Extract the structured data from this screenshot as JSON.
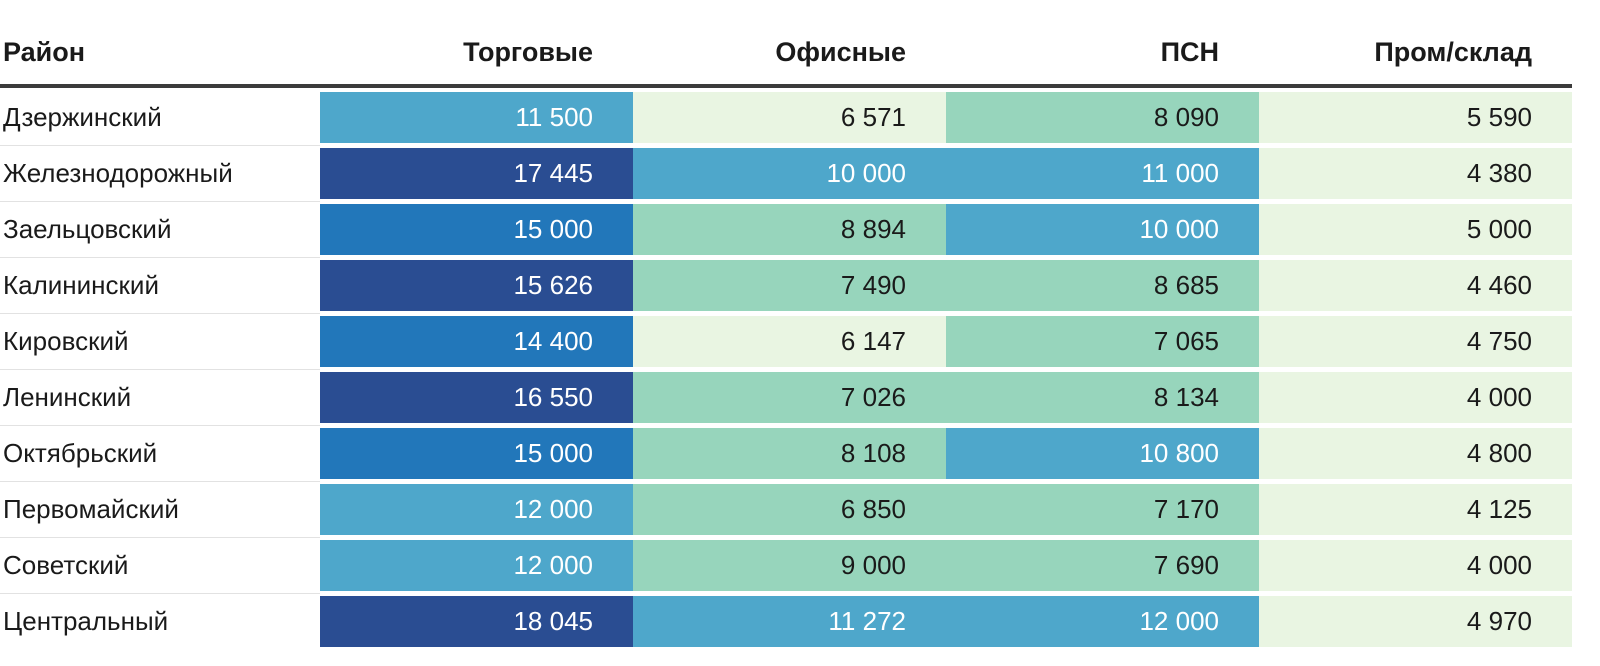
{
  "table": {
    "columns": [
      {
        "key": "district",
        "label": "Район"
      },
      {
        "key": "retail",
        "label": "Торговые"
      },
      {
        "key": "office",
        "label": "Офисные"
      },
      {
        "key": "psn",
        "label": "ПСН"
      },
      {
        "key": "industrial",
        "label": "Пром/склад"
      }
    ],
    "rows": [
      {
        "district": "Дзержинский",
        "cells": [
          {
            "display": "11 500",
            "value": 11500,
            "bin": 3
          },
          {
            "display": "6 571",
            "value": 6571,
            "bin": 1
          },
          {
            "display": "8 090",
            "value": 8090,
            "bin": 2
          },
          {
            "display": "5 590",
            "value": 5590,
            "bin": 1
          }
        ]
      },
      {
        "district": "Железнодорожный",
        "cells": [
          {
            "display": "17 445",
            "value": 17445,
            "bin": 5
          },
          {
            "display": "10 000",
            "value": 10000,
            "bin": 3
          },
          {
            "display": "11 000",
            "value": 11000,
            "bin": 3
          },
          {
            "display": "4 380",
            "value": 4380,
            "bin": 1
          }
        ]
      },
      {
        "district": "Заельцовский",
        "cells": [
          {
            "display": "15 000",
            "value": 15000,
            "bin": 4
          },
          {
            "display": "8 894",
            "value": 8894,
            "bin": 2
          },
          {
            "display": "10 000",
            "value": 10000,
            "bin": 3
          },
          {
            "display": "5 000",
            "value": 5000,
            "bin": 1
          }
        ]
      },
      {
        "district": "Калининский",
        "cells": [
          {
            "display": "15 626",
            "value": 15626,
            "bin": 5
          },
          {
            "display": "7 490",
            "value": 7490,
            "bin": 2
          },
          {
            "display": "8 685",
            "value": 8685,
            "bin": 2
          },
          {
            "display": "4 460",
            "value": 4460,
            "bin": 1
          }
        ]
      },
      {
        "district": "Кировский",
        "cells": [
          {
            "display": "14 400",
            "value": 14400,
            "bin": 4
          },
          {
            "display": "6 147",
            "value": 6147,
            "bin": 1
          },
          {
            "display": "7 065",
            "value": 7065,
            "bin": 2
          },
          {
            "display": "4 750",
            "value": 4750,
            "bin": 1
          }
        ]
      },
      {
        "district": "Ленинский",
        "cells": [
          {
            "display": "16 550",
            "value": 16550,
            "bin": 5
          },
          {
            "display": "7 026",
            "value": 7026,
            "bin": 2
          },
          {
            "display": "8 134",
            "value": 8134,
            "bin": 2
          },
          {
            "display": "4 000",
            "value": 4000,
            "bin": 1
          }
        ]
      },
      {
        "district": "Октябрьский",
        "cells": [
          {
            "display": "15 000",
            "value": 15000,
            "bin": 4
          },
          {
            "display": "8 108",
            "value": 8108,
            "bin": 2
          },
          {
            "display": "10 800",
            "value": 10800,
            "bin": 3
          },
          {
            "display": "4 800",
            "value": 4800,
            "bin": 1
          }
        ]
      },
      {
        "district": "Первомайский",
        "cells": [
          {
            "display": "12 000",
            "value": 12000,
            "bin": 3
          },
          {
            "display": "6 850",
            "value": 6850,
            "bin": 2
          },
          {
            "display": "7 170",
            "value": 7170,
            "bin": 2
          },
          {
            "display": "4 125",
            "value": 4125,
            "bin": 1
          }
        ]
      },
      {
        "district": "Советский",
        "cells": [
          {
            "display": "12 000",
            "value": 12000,
            "bin": 3
          },
          {
            "display": "9 000",
            "value": 9000,
            "bin": 2
          },
          {
            "display": "7 690",
            "value": 7690,
            "bin": 2
          },
          {
            "display": "4 000",
            "value": 4000,
            "bin": 1
          }
        ]
      },
      {
        "district": "Центральный",
        "cells": [
          {
            "display": "18 045",
            "value": 18045,
            "bin": 5
          },
          {
            "display": "11 272",
            "value": 11272,
            "bin": 3
          },
          {
            "display": "12 000",
            "value": 12000,
            "bin": 3
          },
          {
            "display": "4 970",
            "value": 4970,
            "bin": 1
          }
        ]
      }
    ]
  },
  "colors": {
    "bins": {
      "1": "#E9F5E2",
      "2": "#97D5BC",
      "3": "#4EA7CB",
      "4": "#2277BA",
      "5": "#2A4D92"
    },
    "text_dark": "#1A1A1A",
    "text_light": "#FFFFFF",
    "header_border": "#3B3B3B",
    "row_separator": "#E2E2E2"
  },
  "chart_data": {
    "type": "heatmap",
    "title": "",
    "rows": [
      "Дзержинский",
      "Железнодорожный",
      "Заельцовский",
      "Калининский",
      "Кировский",
      "Ленинский",
      "Октябрьский",
      "Первомайский",
      "Советский",
      "Центральный"
    ],
    "columns": [
      "Торговые",
      "Офисные",
      "ПСН",
      "Пром/склад"
    ],
    "values": [
      [
        11500,
        6571,
        8090,
        5590
      ],
      [
        17445,
        10000,
        11000,
        4380
      ],
      [
        15000,
        8894,
        10000,
        5000
      ],
      [
        15626,
        7490,
        8685,
        4460
      ],
      [
        14400,
        6147,
        7065,
        4750
      ],
      [
        16550,
        7026,
        8134,
        4000
      ],
      [
        15000,
        8108,
        10800,
        4800
      ],
      [
        12000,
        6850,
        7170,
        4125
      ],
      [
        12000,
        9000,
        7690,
        4000
      ],
      [
        18045,
        11272,
        12000,
        4970
      ]
    ],
    "value_range": [
      4000,
      18045
    ],
    "color_scale": {
      "kind": "equal-interval-5-bins",
      "bin_thresholds": [
        6809,
        9618,
        12427,
        15236
      ],
      "bin_colors": [
        "#E9F5E2",
        "#97D5BC",
        "#4EA7CB",
        "#2277BA",
        "#2A4D92"
      ]
    },
    "legend_position": "none",
    "grid": "off"
  }
}
